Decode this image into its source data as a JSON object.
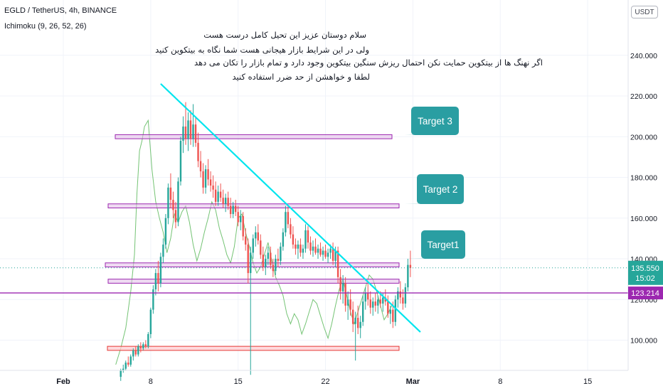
{
  "header": {
    "symbol_line": "EGLD / TetherUS, 4h, BINANCE",
    "indicator_line": "Ichimoku (9, 26, 52, 26)",
    "currency_button": "USDT"
  },
  "note_lines": [
    "سلام دوستان عزیز این تحیل کامل درست هست",
    "ولی در این شرایط بازار هیجانی هست شما نگاه به بیتکوین کنید",
    "اگر نهنگ ها از بیتکوین حمایت نکن احتمال ریزش سنگین بیتکوین وجود دارد و تمام بازار را تکان می دهد",
    "لطفا و خواهشن از حد ضرر استفاده کنید"
  ],
  "chart_data": {
    "type": "candlestick",
    "title": "EGLD / TetherUS, 4h, BINANCE",
    "x_ticks": [
      "Feb",
      "8",
      "15",
      "22",
      "Mar",
      "8",
      "15"
    ],
    "y_ticks": [
      "100.000",
      "120.000",
      "140.000",
      "160.000",
      "180.000",
      "200.000",
      "220.000",
      "240.000"
    ],
    "ylim": [
      80,
      260
    ],
    "price_labels": [
      {
        "text": "135.550",
        "color": "#26a69a"
      },
      {
        "text": "15:02",
        "color": "#26a69a"
      },
      {
        "text": "123.214",
        "color": "#9c27b0"
      }
    ],
    "targets": [
      "Target 3",
      "Target 2",
      "Target1"
    ],
    "zones": [
      {
        "name": "target-3-zone",
        "low": 199,
        "high": 201
      },
      {
        "name": "target-2-zone",
        "low": 165,
        "high": 167
      },
      {
        "name": "target-1-zone",
        "low": 136,
        "high": 138
      },
      {
        "name": "support-zone",
        "low": 128,
        "high": 130
      },
      {
        "name": "stop-loss-zone",
        "low": 95,
        "high": 97
      }
    ],
    "horizontal_line": 123.214,
    "current_price": 135.55,
    "trendline": {
      "from": {
        "day": 7.8,
        "price": 226
      },
      "to": {
        "day": 28.6,
        "price": 104
      }
    },
    "candles": [
      {
        "day": 4.6,
        "o": 82,
        "h": 86,
        "l": 80,
        "c": 85
      },
      {
        "day": 4.8,
        "o": 85,
        "h": 88,
        "l": 84,
        "c": 86
      },
      {
        "day": 5.0,
        "o": 86,
        "h": 90,
        "l": 85,
        "c": 89
      },
      {
        "day": 5.2,
        "o": 89,
        "h": 92,
        "l": 87,
        "c": 88
      },
      {
        "day": 5.4,
        "o": 88,
        "h": 93,
        "l": 87,
        "c": 92
      },
      {
        "day": 5.6,
        "o": 92,
        "h": 96,
        "l": 90,
        "c": 95
      },
      {
        "day": 5.8,
        "o": 95,
        "h": 97,
        "l": 92,
        "c": 93
      },
      {
        "day": 6.0,
        "o": 93,
        "h": 98,
        "l": 92,
        "c": 97
      },
      {
        "day": 6.2,
        "o": 97,
        "h": 99,
        "l": 94,
        "c": 96
      },
      {
        "day": 6.4,
        "o": 96,
        "h": 99,
        "l": 95,
        "c": 98
      },
      {
        "day": 6.6,
        "o": 98,
        "h": 100,
        "l": 96,
        "c": 97
      },
      {
        "day": 6.8,
        "o": 97,
        "h": 104,
        "l": 96,
        "c": 103
      },
      {
        "day": 7.0,
        "o": 103,
        "h": 116,
        "l": 101,
        "c": 115
      },
      {
        "day": 7.2,
        "o": 115,
        "h": 127,
        "l": 113,
        "c": 125
      },
      {
        "day": 7.4,
        "o": 125,
        "h": 135,
        "l": 122,
        "c": 133
      },
      {
        "day": 7.6,
        "o": 133,
        "h": 139,
        "l": 124,
        "c": 128
      },
      {
        "day": 7.8,
        "o": 128,
        "h": 143,
        "l": 126,
        "c": 141
      },
      {
        "day": 8.0,
        "o": 141,
        "h": 150,
        "l": 138,
        "c": 147
      },
      {
        "day": 8.2,
        "o": 147,
        "h": 162,
        "l": 145,
        "c": 160
      },
      {
        "day": 8.4,
        "o": 160,
        "h": 177,
        "l": 157,
        "c": 175
      },
      {
        "day": 8.6,
        "o": 175,
        "h": 182,
        "l": 165,
        "c": 169
      },
      {
        "day": 8.8,
        "o": 169,
        "h": 173,
        "l": 160,
        "c": 164
      },
      {
        "day": 9.0,
        "o": 164,
        "h": 168,
        "l": 155,
        "c": 158
      },
      {
        "day": 9.2,
        "o": 158,
        "h": 180,
        "l": 156,
        "c": 178
      },
      {
        "day": 9.4,
        "o": 178,
        "h": 200,
        "l": 176,
        "c": 198
      },
      {
        "day": 9.6,
        "o": 198,
        "h": 210,
        "l": 192,
        "c": 205
      },
      {
        "day": 9.8,
        "o": 205,
        "h": 217,
        "l": 196,
        "c": 199
      },
      {
        "day": 10.0,
        "o": 199,
        "h": 212,
        "l": 193,
        "c": 208
      },
      {
        "day": 10.2,
        "o": 208,
        "h": 213,
        "l": 196,
        "c": 199
      },
      {
        "day": 10.4,
        "o": 199,
        "h": 216,
        "l": 195,
        "c": 206
      },
      {
        "day": 10.6,
        "o": 206,
        "h": 210,
        "l": 195,
        "c": 197
      },
      {
        "day": 10.8,
        "o": 197,
        "h": 202,
        "l": 185,
        "c": 188
      },
      {
        "day": 11.0,
        "o": 188,
        "h": 193,
        "l": 180,
        "c": 183
      },
      {
        "day": 11.2,
        "o": 183,
        "h": 187,
        "l": 172,
        "c": 175
      },
      {
        "day": 11.4,
        "o": 175,
        "h": 186,
        "l": 172,
        "c": 184
      },
      {
        "day": 11.6,
        "o": 184,
        "h": 189,
        "l": 176,
        "c": 179
      },
      {
        "day": 11.8,
        "o": 179,
        "h": 183,
        "l": 173,
        "c": 176
      },
      {
        "day": 12.0,
        "o": 176,
        "h": 181,
        "l": 170,
        "c": 174
      },
      {
        "day": 12.2,
        "o": 174,
        "h": 178,
        "l": 166,
        "c": 168
      },
      {
        "day": 12.4,
        "o": 168,
        "h": 176,
        "l": 166,
        "c": 173
      },
      {
        "day": 12.6,
        "o": 173,
        "h": 177,
        "l": 168,
        "c": 170
      },
      {
        "day": 12.8,
        "o": 170,
        "h": 174,
        "l": 165,
        "c": 167
      },
      {
        "day": 13.0,
        "o": 167,
        "h": 172,
        "l": 163,
        "c": 170
      },
      {
        "day": 13.2,
        "o": 170,
        "h": 173,
        "l": 164,
        "c": 166
      },
      {
        "day": 13.4,
        "o": 166,
        "h": 170,
        "l": 160,
        "c": 162
      },
      {
        "day": 13.6,
        "o": 162,
        "h": 168,
        "l": 160,
        "c": 166
      },
      {
        "day": 13.8,
        "o": 166,
        "h": 169,
        "l": 161,
        "c": 163
      },
      {
        "day": 14.0,
        "o": 163,
        "h": 166,
        "l": 156,
        "c": 158
      },
      {
        "day": 14.2,
        "o": 158,
        "h": 164,
        "l": 154,
        "c": 161
      },
      {
        "day": 14.4,
        "o": 161,
        "h": 163,
        "l": 149,
        "c": 151
      },
      {
        "day": 14.6,
        "o": 151,
        "h": 155,
        "l": 144,
        "c": 147
      },
      {
        "day": 14.8,
        "o": 147,
        "h": 150,
        "l": 128,
        "c": 133
      },
      {
        "day": 15.0,
        "o": 133,
        "h": 146,
        "l": 83,
        "c": 143
      },
      {
        "day": 15.2,
        "o": 143,
        "h": 152,
        "l": 140,
        "c": 150
      },
      {
        "day": 15.4,
        "o": 150,
        "h": 156,
        "l": 146,
        "c": 153
      },
      {
        "day": 15.6,
        "o": 153,
        "h": 157,
        "l": 147,
        "c": 149
      },
      {
        "day": 15.8,
        "o": 149,
        "h": 152,
        "l": 140,
        "c": 142
      },
      {
        "day": 16.0,
        "o": 142,
        "h": 146,
        "l": 134,
        "c": 136
      },
      {
        "day": 16.2,
        "o": 136,
        "h": 142,
        "l": 132,
        "c": 140
      },
      {
        "day": 16.4,
        "o": 140,
        "h": 146,
        "l": 137,
        "c": 143
      },
      {
        "day": 16.6,
        "o": 143,
        "h": 146,
        "l": 135,
        "c": 137
      },
      {
        "day": 16.8,
        "o": 137,
        "h": 140,
        "l": 131,
        "c": 134
      },
      {
        "day": 17.0,
        "o": 134,
        "h": 142,
        "l": 132,
        "c": 140
      },
      {
        "day": 17.2,
        "o": 140,
        "h": 145,
        "l": 136,
        "c": 139
      },
      {
        "day": 17.4,
        "o": 139,
        "h": 148,
        "l": 137,
        "c": 146
      },
      {
        "day": 17.6,
        "o": 146,
        "h": 155,
        "l": 144,
        "c": 153
      },
      {
        "day": 17.8,
        "o": 153,
        "h": 166,
        "l": 151,
        "c": 163
      },
      {
        "day": 18.0,
        "o": 163,
        "h": 166,
        "l": 155,
        "c": 157
      },
      {
        "day": 18.2,
        "o": 157,
        "h": 160,
        "l": 150,
        "c": 152
      },
      {
        "day": 18.4,
        "o": 152,
        "h": 156,
        "l": 145,
        "c": 147
      },
      {
        "day": 18.6,
        "o": 147,
        "h": 150,
        "l": 142,
        "c": 145
      },
      {
        "day": 18.8,
        "o": 145,
        "h": 149,
        "l": 140,
        "c": 147
      },
      {
        "day": 19.0,
        "o": 147,
        "h": 150,
        "l": 141,
        "c": 143
      },
      {
        "day": 19.2,
        "o": 143,
        "h": 147,
        "l": 140,
        "c": 145
      },
      {
        "day": 19.4,
        "o": 145,
        "h": 157,
        "l": 143,
        "c": 154
      },
      {
        "day": 19.6,
        "o": 154,
        "h": 156,
        "l": 145,
        "c": 148
      },
      {
        "day": 19.8,
        "o": 148,
        "h": 151,
        "l": 142,
        "c": 144
      },
      {
        "day": 20.0,
        "o": 144,
        "h": 149,
        "l": 141,
        "c": 146
      },
      {
        "day": 20.2,
        "o": 146,
        "h": 150,
        "l": 142,
        "c": 143
      },
      {
        "day": 20.4,
        "o": 143,
        "h": 147,
        "l": 140,
        "c": 145
      },
      {
        "day": 20.6,
        "o": 145,
        "h": 148,
        "l": 141,
        "c": 142
      },
      {
        "day": 20.8,
        "o": 142,
        "h": 146,
        "l": 139,
        "c": 144
      },
      {
        "day": 21.0,
        "o": 144,
        "h": 147,
        "l": 140,
        "c": 141
      },
      {
        "day": 21.2,
        "o": 141,
        "h": 145,
        "l": 138,
        "c": 143
      },
      {
        "day": 21.4,
        "o": 143,
        "h": 147,
        "l": 140,
        "c": 145
      },
      {
        "day": 21.6,
        "o": 145,
        "h": 148,
        "l": 137,
        "c": 139
      },
      {
        "day": 21.8,
        "o": 139,
        "h": 146,
        "l": 136,
        "c": 144
      },
      {
        "day": 22.0,
        "o": 144,
        "h": 146,
        "l": 128,
        "c": 131
      },
      {
        "day": 22.2,
        "o": 131,
        "h": 135,
        "l": 120,
        "c": 124
      },
      {
        "day": 22.4,
        "o": 124,
        "h": 132,
        "l": 118,
        "c": 128
      },
      {
        "day": 22.6,
        "o": 128,
        "h": 131,
        "l": 114,
        "c": 117
      },
      {
        "day": 22.8,
        "o": 117,
        "h": 124,
        "l": 110,
        "c": 120
      },
      {
        "day": 23.0,
        "o": 120,
        "h": 125,
        "l": 112,
        "c": 115
      },
      {
        "day": 23.2,
        "o": 115,
        "h": 119,
        "l": 104,
        "c": 108
      },
      {
        "day": 23.4,
        "o": 108,
        "h": 114,
        "l": 90,
        "c": 111
      },
      {
        "day": 23.6,
        "o": 111,
        "h": 117,
        "l": 103,
        "c": 106
      },
      {
        "day": 23.8,
        "o": 106,
        "h": 112,
        "l": 101,
        "c": 109
      },
      {
        "day": 24.0,
        "o": 109,
        "h": 122,
        "l": 107,
        "c": 119
      },
      {
        "day": 24.2,
        "o": 119,
        "h": 126,
        "l": 115,
        "c": 123
      },
      {
        "day": 24.4,
        "o": 123,
        "h": 128,
        "l": 117,
        "c": 120
      },
      {
        "day": 24.6,
        "o": 120,
        "h": 124,
        "l": 113,
        "c": 116
      },
      {
        "day": 24.8,
        "o": 116,
        "h": 121,
        "l": 112,
        "c": 119
      },
      {
        "day": 25.0,
        "o": 119,
        "h": 123,
        "l": 114,
        "c": 117
      },
      {
        "day": 25.2,
        "o": 117,
        "h": 122,
        "l": 113,
        "c": 120
      },
      {
        "day": 25.4,
        "o": 120,
        "h": 124,
        "l": 116,
        "c": 118
      },
      {
        "day": 25.6,
        "o": 118,
        "h": 123,
        "l": 114,
        "c": 121
      },
      {
        "day": 25.8,
        "o": 121,
        "h": 125,
        "l": 117,
        "c": 119
      },
      {
        "day": 26.0,
        "o": 119,
        "h": 122,
        "l": 111,
        "c": 113
      },
      {
        "day": 26.2,
        "o": 113,
        "h": 117,
        "l": 108,
        "c": 115
      },
      {
        "day": 26.4,
        "o": 115,
        "h": 119,
        "l": 106,
        "c": 109
      },
      {
        "day": 26.6,
        "o": 109,
        "h": 122,
        "l": 107,
        "c": 120
      },
      {
        "day": 26.8,
        "o": 120,
        "h": 126,
        "l": 116,
        "c": 124
      },
      {
        "day": 27.0,
        "o": 124,
        "h": 129,
        "l": 118,
        "c": 121
      },
      {
        "day": 27.2,
        "o": 121,
        "h": 125,
        "l": 115,
        "c": 118
      },
      {
        "day": 27.4,
        "o": 118,
        "h": 128,
        "l": 116,
        "c": 126
      },
      {
        "day": 27.6,
        "o": 126,
        "h": 140,
        "l": 124,
        "c": 137
      },
      {
        "day": 27.8,
        "o": 137,
        "h": 144,
        "l": 131,
        "c": 135.55
      }
    ],
    "ichimoku_line": [
      [
        4.2,
        88
      ],
      [
        4.6,
        96
      ],
      [
        5.0,
        106
      ],
      [
        5.4,
        124
      ],
      [
        5.7,
        142
      ],
      [
        5.9,
        172
      ],
      [
        6.1,
        193
      ],
      [
        6.3,
        198
      ],
      [
        6.5,
        205
      ],
      [
        6.8,
        208
      ],
      [
        7.1,
        184
      ],
      [
        7.4,
        168
      ],
      [
        7.7,
        160
      ],
      [
        8.0,
        153
      ],
      [
        8.3,
        143
      ],
      [
        8.6,
        150
      ],
      [
        8.9,
        162
      ],
      [
        9.2,
        158
      ],
      [
        9.5,
        163
      ],
      [
        9.8,
        166
      ],
      [
        10.1,
        158
      ],
      [
        10.4,
        147
      ],
      [
        10.7,
        139
      ],
      [
        11.0,
        145
      ],
      [
        11.3,
        153
      ],
      [
        11.6,
        160
      ],
      [
        11.9,
        168
      ],
      [
        12.2,
        164
      ],
      [
        12.5,
        155
      ],
      [
        12.8,
        149
      ],
      [
        13.1,
        142
      ],
      [
        13.4,
        138
      ],
      [
        13.7,
        146
      ],
      [
        14.0,
        160
      ],
      [
        14.3,
        162
      ],
      [
        14.6,
        153
      ],
      [
        14.9,
        146
      ],
      [
        15.2,
        138
      ],
      [
        15.5,
        133
      ],
      [
        15.8,
        136
      ],
      [
        16.1,
        142
      ],
      [
        16.4,
        148
      ],
      [
        16.7,
        139
      ],
      [
        17.0,
        131
      ],
      [
        17.3,
        127
      ],
      [
        17.6,
        122
      ],
      [
        17.9,
        113
      ],
      [
        18.2,
        108
      ],
      [
        18.5,
        113
      ],
      [
        18.8,
        110
      ],
      [
        19.1,
        103
      ],
      [
        19.4,
        108
      ],
      [
        19.7,
        114
      ],
      [
        20.0,
        120
      ],
      [
        20.3,
        118
      ],
      [
        20.6,
        112
      ],
      [
        20.9,
        106
      ],
      [
        21.2,
        101
      ],
      [
        21.5,
        108
      ],
      [
        21.8,
        117
      ],
      [
        22.1,
        125
      ],
      [
        22.4,
        130
      ],
      [
        22.7,
        122
      ],
      [
        23.0,
        114
      ],
      [
        23.3,
        108
      ],
      [
        23.6,
        114
      ],
      [
        23.9,
        120
      ],
      [
        24.2,
        126
      ],
      [
        24.5,
        132
      ],
      [
        24.8,
        130
      ],
      [
        25.1,
        124
      ],
      [
        25.4,
        117
      ],
      [
        25.7,
        110
      ],
      [
        26.0,
        113
      ],
      [
        26.3,
        117
      ]
    ]
  }
}
